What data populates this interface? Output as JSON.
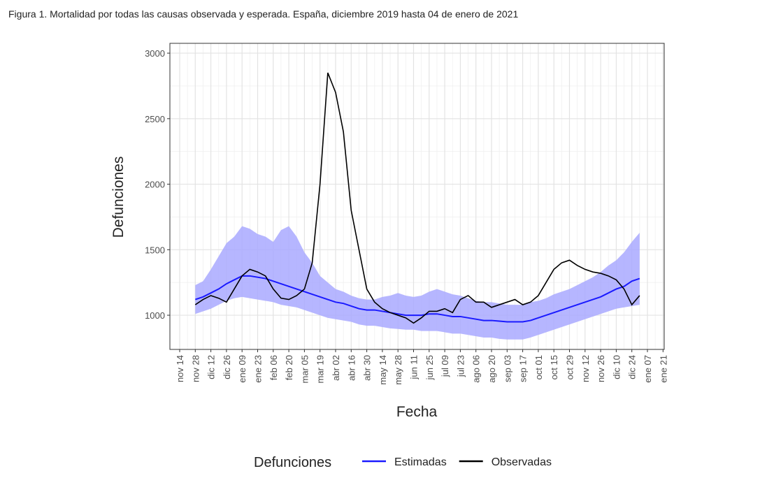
{
  "chart_data": {
    "type": "line",
    "title": "Figura 1. Mortalidad por todas las causas observada y esperada. España, diciembre 2019 hasta 04 de enero de 2021",
    "x_label": "Fecha",
    "y_label": "Defunciones",
    "legend_title": "Defunciones",
    "grid": true,
    "x": [
      "nov 28",
      "dic 05",
      "dic 12",
      "dic 19",
      "dic 26",
      "ene 02",
      "ene 09",
      "ene 16",
      "ene 23",
      "ene 30",
      "feb 06",
      "feb 13",
      "feb 20",
      "feb 27",
      "mar 05",
      "mar 12",
      "mar 19",
      "mar 26",
      "abr 02",
      "abr 09",
      "abr 16",
      "abr 23",
      "abr 30",
      "may 07",
      "may 14",
      "may 21",
      "may 28",
      "jun 04",
      "jun 11",
      "jun 18",
      "jun 25",
      "jul 02",
      "jul 09",
      "jul 16",
      "jul 23",
      "jul 30",
      "ago 06",
      "ago 13",
      "ago 20",
      "ago 27",
      "sep 03",
      "sep 10",
      "sep 17",
      "sep 24",
      "oct 01",
      "oct 08",
      "oct 15",
      "oct 22",
      "oct 29",
      "nov 05",
      "nov 12",
      "nov 19",
      "nov 26",
      "dic 03",
      "dic 10",
      "dic 17",
      "dic 24",
      "dic 31"
    ],
    "xticks": [
      "nov 14",
      "nov 28",
      "dic 12",
      "dic 26",
      "ene 09",
      "ene 23",
      "feb 06",
      "feb 20",
      "mar 05",
      "mar 19",
      "abr 02",
      "abr 16",
      "abr 30",
      "may 14",
      "may 28",
      "jun 11",
      "jun 25",
      "jul 09",
      "jul 23",
      "ago 06",
      "ago 20",
      "sep 03",
      "sep 17",
      "oct 01",
      "oct 15",
      "oct 29",
      "nov 12",
      "nov 26",
      "dic 10",
      "dic 24",
      "ene 07",
      "ene 21"
    ],
    "ylim": [
      739,
      3075
    ],
    "yticks": [
      1000,
      1500,
      2000,
      2500,
      3000
    ],
    "interval": {
      "color": "#a9a9ff",
      "upper": [
        1230,
        1260,
        1350,
        1450,
        1550,
        1600,
        1680,
        1660,
        1620,
        1600,
        1560,
        1650,
        1680,
        1600,
        1480,
        1400,
        1300,
        1250,
        1200,
        1180,
        1150,
        1130,
        1120,
        1120,
        1140,
        1150,
        1170,
        1150,
        1140,
        1150,
        1180,
        1200,
        1180,
        1160,
        1150,
        1130,
        1110,
        1100,
        1100,
        1090,
        1080,
        1080,
        1080,
        1100,
        1110,
        1130,
        1160,
        1180,
        1200,
        1230,
        1260,
        1290,
        1330,
        1380,
        1420,
        1480,
        1560,
        1630
      ],
      "lower": [
        1010,
        1030,
        1050,
        1080,
        1110,
        1130,
        1140,
        1130,
        1120,
        1110,
        1100,
        1080,
        1070,
        1060,
        1040,
        1020,
        1000,
        980,
        970,
        960,
        950,
        930,
        920,
        920,
        910,
        900,
        895,
        890,
        890,
        880,
        880,
        880,
        870,
        860,
        860,
        850,
        840,
        830,
        830,
        820,
        815,
        815,
        815,
        830,
        850,
        870,
        890,
        910,
        930,
        950,
        970,
        990,
        1010,
        1030,
        1050,
        1060,
        1070,
        1080
      ]
    },
    "series": [
      {
        "name": "Estimadas",
        "color": "#1a1aff",
        "values": [
          1120,
          1140,
          1170,
          1200,
          1240,
          1270,
          1300,
          1300,
          1290,
          1280,
          1260,
          1240,
          1220,
          1200,
          1180,
          1160,
          1140,
          1120,
          1100,
          1090,
          1070,
          1050,
          1040,
          1040,
          1030,
          1020,
          1010,
          1000,
          1000,
          1000,
          1010,
          1010,
          1000,
          990,
          990,
          980,
          970,
          960,
          960,
          955,
          950,
          950,
          950,
          960,
          980,
          1000,
          1020,
          1040,
          1060,
          1080,
          1100,
          1120,
          1140,
          1170,
          1200,
          1220,
          1260,
          1280
        ]
      },
      {
        "name": "Observadas",
        "color": "#000000",
        "values": [
          1080,
          1120,
          1150,
          1130,
          1100,
          1200,
          1300,
          1350,
          1330,
          1300,
          1200,
          1130,
          1120,
          1150,
          1200,
          1400,
          2000,
          2850,
          2700,
          2400,
          1800,
          1500,
          1200,
          1100,
          1050,
          1020,
          1000,
          980,
          940,
          980,
          1030,
          1030,
          1050,
          1020,
          1120,
          1150,
          1100,
          1100,
          1060,
          1080,
          1100,
          1120,
          1080,
          1100,
          1150,
          1250,
          1350,
          1400,
          1420,
          1380,
          1350,
          1330,
          1320,
          1300,
          1270,
          1200,
          1080,
          1150
        ]
      }
    ]
  }
}
